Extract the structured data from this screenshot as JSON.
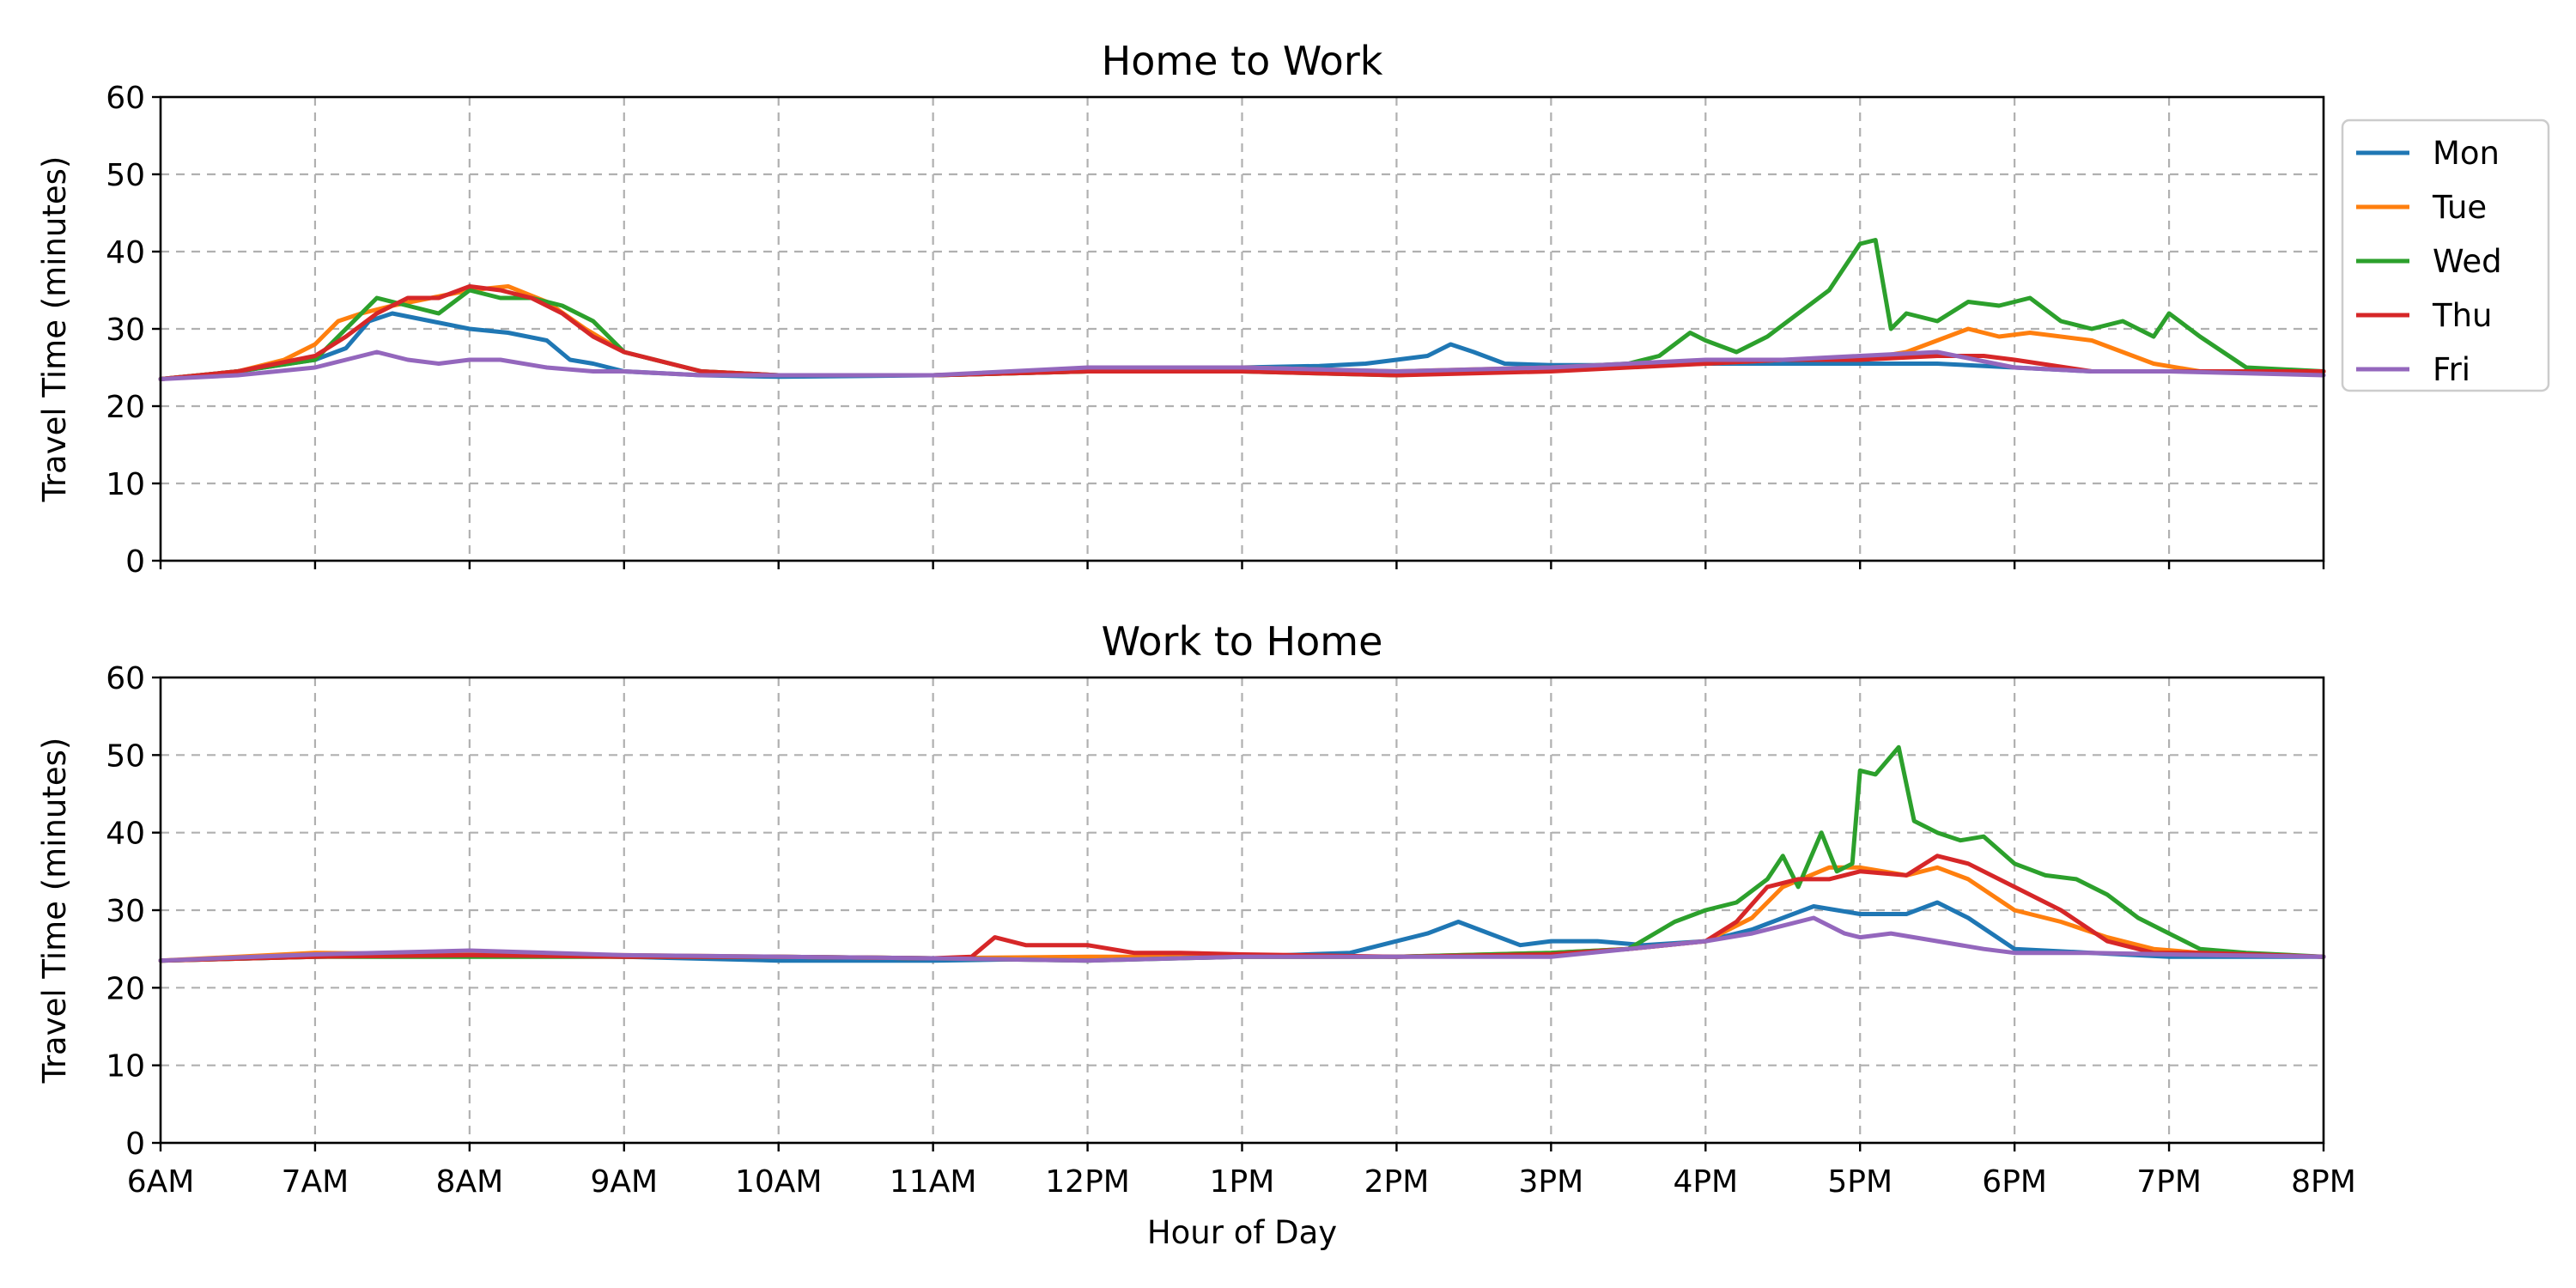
{
  "chart_data": [
    {
      "type": "line",
      "title": "Home to Work",
      "ylabel": "Travel Time (minutes)",
      "xlabel": "",
      "x_unit": "hours",
      "xlim": [
        6,
        20
      ],
      "ylim": [
        0,
        60
      ],
      "yticks": [
        0,
        10,
        20,
        30,
        40,
        50,
        60
      ],
      "xticks": [
        6,
        7,
        8,
        9,
        10,
        11,
        12,
        13,
        14,
        15,
        16,
        17,
        18,
        19,
        20
      ],
      "xtick_labels_shown": false,
      "grid": true,
      "legend": "outside-top-right",
      "series": [
        {
          "name": "Mon",
          "color": "#1f77b4",
          "x": [
            6,
            6.5,
            7,
            7.2,
            7.35,
            7.5,
            7.75,
            8,
            8.25,
            8.5,
            8.65,
            8.8,
            9,
            9.5,
            10,
            11,
            12,
            13,
            13.5,
            13.8,
            14,
            14.2,
            14.35,
            14.5,
            14.7,
            15,
            15.5,
            16,
            16.5,
            17,
            17.5,
            18,
            18.5,
            19,
            19.5,
            20
          ],
          "y": [
            23.5,
            24.5,
            26,
            27.5,
            31,
            32,
            31,
            30,
            29.5,
            28.5,
            26,
            25.5,
            24.5,
            24,
            23.8,
            24,
            24.5,
            25,
            25.2,
            25.5,
            26,
            26.5,
            28,
            27,
            25.5,
            25.3,
            25.3,
            25.5,
            25.5,
            25.5,
            25.5,
            25,
            24.5,
            24.5,
            24.5,
            24.5
          ]
        },
        {
          "name": "Tue",
          "color": "#ff7f0e",
          "x": [
            6,
            6.5,
            6.8,
            7,
            7.15,
            7.3,
            7.5,
            7.75,
            8,
            8.25,
            8.5,
            8.75,
            9,
            9.5,
            10,
            11,
            12,
            13,
            14,
            15,
            16,
            16.5,
            17,
            17.3,
            17.5,
            17.7,
            17.9,
            18.1,
            18.3,
            18.5,
            18.7,
            18.9,
            19.2,
            19.5,
            20
          ],
          "y": [
            23.5,
            24.5,
            26,
            28,
            31,
            32,
            33,
            34,
            35,
            35.5,
            33.5,
            30,
            27,
            24.5,
            24,
            24,
            24.5,
            25,
            24.5,
            25,
            25.5,
            26,
            26,
            27,
            28.5,
            30,
            29,
            29.5,
            29,
            28.5,
            27,
            25.5,
            24.5,
            24.5,
            24.5
          ]
        },
        {
          "name": "Wed",
          "color": "#2ca02c",
          "x": [
            6,
            6.5,
            7,
            7.2,
            7.4,
            7.6,
            7.8,
            8,
            8.2,
            8.4,
            8.6,
            8.8,
            9,
            9.5,
            10,
            11,
            12,
            13,
            14,
            15,
            15.5,
            15.7,
            15.9,
            16,
            16.2,
            16.4,
            16.6,
            16.8,
            17,
            17.1,
            17.2,
            17.3,
            17.5,
            17.7,
            17.9,
            18.1,
            18.3,
            18.5,
            18.7,
            18.9,
            19,
            19.2,
            19.5,
            20
          ],
          "y": [
            23.5,
            24.5,
            26,
            30,
            34,
            33,
            32,
            35,
            34,
            34,
            33,
            31,
            27,
            24.5,
            24,
            24,
            24.5,
            24.5,
            24,
            25,
            25.5,
            26.5,
            29.5,
            28.5,
            27,
            29,
            32,
            35,
            41,
            41.5,
            30,
            32,
            31,
            33.5,
            33,
            34,
            31,
            30,
            31,
            29,
            32,
            29,
            25,
            24.5
          ]
        },
        {
          "name": "Thu",
          "color": "#d62728",
          "x": [
            6,
            6.5,
            7,
            7.2,
            7.4,
            7.6,
            7.8,
            8,
            8.2,
            8.4,
            8.6,
            8.8,
            9,
            9.5,
            10,
            11,
            12,
            13,
            14,
            15,
            16,
            16.5,
            17,
            17.5,
            17.8,
            18,
            18.5,
            19,
            20
          ],
          "y": [
            23.5,
            24.5,
            26.5,
            29,
            32,
            34,
            34,
            35.5,
            35,
            34,
            32,
            29,
            27,
            24.5,
            24,
            24,
            24.5,
            24.5,
            24,
            24.5,
            25.5,
            26,
            26,
            26.5,
            26.5,
            26,
            24.5,
            24.5,
            24.5
          ]
        },
        {
          "name": "Fri",
          "color": "#9467bd",
          "x": [
            6,
            6.5,
            7,
            7.2,
            7.4,
            7.6,
            7.8,
            8,
            8.2,
            8.5,
            8.8,
            9,
            9.5,
            10,
            11,
            12,
            13,
            14,
            15,
            15.5,
            16,
            16.5,
            17,
            17.5,
            18,
            18.5,
            19,
            20
          ],
          "y": [
            23.5,
            24,
            25,
            26,
            27,
            26,
            25.5,
            26,
            26,
            25,
            24.5,
            24.5,
            24,
            24,
            24,
            25,
            25,
            24.5,
            25,
            25.5,
            26,
            26,
            26.5,
            27,
            25,
            24.5,
            24.5,
            24
          ]
        }
      ]
    },
    {
      "type": "line",
      "title": "Work to Home",
      "ylabel": "Travel Time (minutes)",
      "xlabel": "Hour of Day",
      "x_unit": "hours",
      "xlim": [
        6,
        20
      ],
      "ylim": [
        0,
        60
      ],
      "yticks": [
        0,
        10,
        20,
        30,
        40,
        50,
        60
      ],
      "xticks": [
        6,
        7,
        8,
        9,
        10,
        11,
        12,
        13,
        14,
        15,
        16,
        17,
        18,
        19,
        20
      ],
      "xtick_labels": [
        "6AM",
        "7AM",
        "8AM",
        "9AM",
        "10AM",
        "11AM",
        "12PM",
        "1PM",
        "2PM",
        "3PM",
        "4PM",
        "5PM",
        "6PM",
        "7PM",
        "8PM"
      ],
      "grid": true,
      "series": [
        {
          "name": "Mon",
          "color": "#1f77b4",
          "x": [
            6,
            7,
            8,
            9,
            10,
            11,
            12,
            13,
            13.7,
            14,
            14.2,
            14.4,
            14.6,
            14.8,
            15,
            15.3,
            15.6,
            16,
            16.3,
            16.5,
            16.7,
            17,
            17.3,
            17.5,
            17.7,
            18,
            18.5,
            19,
            20
          ],
          "y": [
            23.5,
            24,
            24.3,
            24,
            23.5,
            23.5,
            23.8,
            24,
            24.5,
            26,
            27,
            28.5,
            27,
            25.5,
            26,
            26,
            25.5,
            26,
            27.5,
            29,
            30.5,
            29.5,
            29.5,
            31,
            29,
            25,
            24.5,
            24,
            24
          ]
        },
        {
          "name": "Tue",
          "color": "#ff7f0e",
          "x": [
            6,
            7,
            8,
            9,
            10,
            11,
            12,
            13,
            14,
            15,
            15.5,
            16,
            16.3,
            16.5,
            16.8,
            17,
            17.3,
            17.5,
            17.7,
            18,
            18.3,
            18.6,
            18.9,
            19.2,
            20
          ],
          "y": [
            23.5,
            24.5,
            24.3,
            24.2,
            24,
            23.8,
            24,
            24,
            24,
            24.5,
            25,
            26,
            29,
            33,
            35.5,
            35.5,
            34.5,
            35.5,
            34,
            30,
            28.5,
            26.5,
            25,
            24.5,
            24
          ]
        },
        {
          "name": "Wed",
          "color": "#2ca02c",
          "x": [
            6,
            7,
            8,
            9,
            10,
            11,
            12,
            13,
            14,
            15,
            15.5,
            15.8,
            16,
            16.2,
            16.4,
            16.5,
            16.6,
            16.75,
            16.85,
            16.95,
            17,
            17.1,
            17.25,
            17.35,
            17.5,
            17.65,
            17.8,
            18,
            18.2,
            18.4,
            18.6,
            18.8,
            19,
            19.2,
            19.5,
            20
          ],
          "y": [
            23.5,
            24,
            24,
            24,
            24,
            23.8,
            23.5,
            24,
            24,
            24.5,
            25,
            28.5,
            30,
            31,
            34,
            37,
            33,
            40,
            35,
            36,
            48,
            47.5,
            51,
            41.5,
            40,
            39,
            39.5,
            36,
            34.5,
            34,
            32,
            29,
            27,
            25,
            24.5,
            24
          ]
        },
        {
          "name": "Thu",
          "color": "#d62728",
          "x": [
            6,
            7,
            8,
            9,
            10,
            11,
            11.25,
            11.4,
            11.6,
            11.8,
            12,
            12.3,
            12.6,
            13,
            14,
            15,
            15.5,
            16,
            16.2,
            16.4,
            16.6,
            16.8,
            17,
            17.3,
            17.5,
            17.7,
            18,
            18.3,
            18.6,
            18.9,
            19.2,
            20
          ],
          "y": [
            23.5,
            24,
            24.2,
            24,
            24,
            23.8,
            24,
            26.5,
            25.5,
            25.5,
            25.5,
            24.5,
            24.5,
            24.3,
            24,
            24.3,
            25,
            26,
            28.5,
            33,
            34,
            34,
            35,
            34.5,
            37,
            36,
            33,
            30,
            26,
            24.5,
            24.5,
            24
          ]
        },
        {
          "name": "Fri",
          "color": "#9467bd",
          "x": [
            6,
            7,
            8,
            9,
            10,
            11,
            12,
            13,
            14,
            15,
            15.5,
            16,
            16.3,
            16.5,
            16.7,
            16.9,
            17,
            17.2,
            17.5,
            17.8,
            18,
            18.5,
            19,
            20
          ],
          "y": [
            23.5,
            24.3,
            24.8,
            24.2,
            24,
            23.8,
            23.5,
            24,
            24,
            24,
            25,
            26,
            27,
            28,
            29,
            27,
            26.5,
            27,
            26,
            25,
            24.5,
            24.5,
            24.3,
            24
          ]
        }
      ]
    }
  ]
}
